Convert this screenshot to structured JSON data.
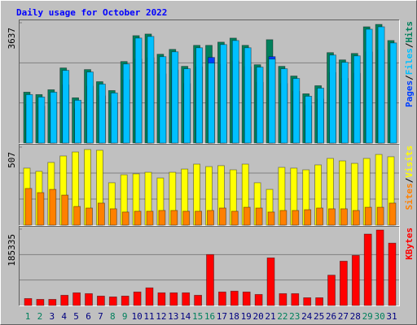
{
  "chart_data": [
    {
      "type": "bar",
      "title": "Daily usage for October 2022",
      "label_separator": "/",
      "ylim": [
        0,
        3637
      ],
      "yticks": [
        3637
      ],
      "series": [
        {
          "name": "Hits",
          "color": "#00805c",
          "values": [
            1538,
            1465,
            1611,
            2270,
            1367,
            2221,
            1855,
            1587,
            2465,
            3247,
            3296,
            2685,
            2832,
            2319,
            2954,
            2954,
            3051,
            3173,
            2954,
            2368,
            3125,
            2319,
            2026,
            1489,
            1733,
            2734,
            2514,
            2709,
            3515,
            3588,
            3100
          ]
        },
        {
          "name": "Pages",
          "color": "#0040ff",
          "values": [
            1172,
            1114,
            1230,
            1758,
            1035,
            1718,
            1426,
            1211,
            1914,
            2539,
            2578,
            2090,
            2207,
            1797,
            2305,
            2588,
            2382,
            2480,
            2305,
            1836,
            2612,
            1797,
            1562,
            1133,
            1328,
            2129,
            1953,
            2109,
            2754,
            2812,
            2422
          ]
        },
        {
          "name": "Files",
          "color": "#00c0ff",
          "values": [
            1465,
            1392,
            1538,
            2197,
            1294,
            2148,
            1782,
            1514,
            2392,
            3174,
            3223,
            2612,
            2759,
            2246,
            2881,
            2417,
            2978,
            3100,
            2881,
            2295,
            2539,
            2246,
            1953,
            1416,
            1660,
            2661,
            2441,
            2636,
            3442,
            3515,
            3027
          ]
        }
      ],
      "legend_order": [
        "Pages",
        "Files",
        "Hits"
      ]
    },
    {
      "type": "bar",
      "ylim": [
        0,
        507
      ],
      "yticks": [
        507
      ],
      "series": [
        {
          "name": "Visits",
          "color": "#ffff00",
          "values": [
            370,
            349,
            407,
            449,
            475,
            491,
            486,
            275,
            327,
            333,
            343,
            306,
            343,
            364,
            396,
            380,
            386,
            359,
            396,
            275,
            232,
            375,
            370,
            359,
            391,
            433,
            417,
            401,
            433,
            459,
            444
          ]
        },
        {
          "name": "Sites",
          "color": "#ff8000",
          "values": [
            238,
            211,
            232,
            195,
            121,
            111,
            143,
            106,
            85,
            90,
            90,
            95,
            95,
            90,
            90,
            95,
            111,
            90,
            116,
            111,
            85,
            95,
            95,
            100,
            111,
            106,
            106,
            95,
            116,
            116,
            143
          ]
        }
      ],
      "legend_order": [
        "Sites",
        "Visits"
      ]
    },
    {
      "type": "bar",
      "ylim": [
        0,
        185335
      ],
      "yticks": [
        185335
      ],
      "categories": [
        "1",
        "2",
        "3",
        "4",
        "5",
        "6",
        "7",
        "8",
        "9",
        "10",
        "11",
        "12",
        "13",
        "14",
        "15",
        "16",
        "17",
        "18",
        "19",
        "20",
        "21",
        "22",
        "23",
        "24",
        "25",
        "26",
        "27",
        "28",
        "29",
        "30",
        "31"
      ],
      "category_colors": [
        "#00805c",
        "#00805c",
        "#000080",
        "#000080",
        "#000080",
        "#000080",
        "#000080",
        "#00805c",
        "#00805c",
        "#000080",
        "#000080",
        "#000080",
        "#000080",
        "#000080",
        "#00805c",
        "#00805c",
        "#000080",
        "#000080",
        "#000080",
        "#000080",
        "#000080",
        "#00805c",
        "#00805c",
        "#000080",
        "#000080",
        "#000080",
        "#000080",
        "#000080",
        "#00805c",
        "#00805c",
        "#000080"
      ],
      "series": [
        {
          "name": "KBytes",
          "color": "#ff0000",
          "values": [
            16940,
            14950,
            14950,
            24900,
            30900,
            28900,
            22900,
            20900,
            22900,
            32900,
            42900,
            30900,
            30900,
            30900,
            24900,
            123600,
            32900,
            34900,
            32900,
            26900,
            115600,
            28900,
            28900,
            18900,
            18900,
            73700,
            107600,
            121600,
            173400,
            183300,
            151400
          ]
        }
      ],
      "legend_order": [
        "KBytes"
      ]
    }
  ]
}
